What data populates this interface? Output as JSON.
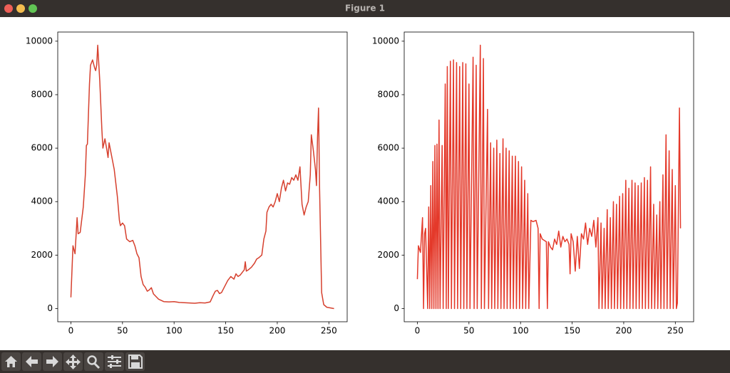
{
  "window": {
    "title": "Figure 1"
  },
  "chart_data": [
    {
      "type": "line",
      "color": "#d6402e",
      "x": [
        0,
        2,
        4,
        6,
        7,
        9,
        12,
        14,
        15,
        16,
        18,
        19,
        21,
        23,
        24,
        25,
        26,
        28,
        30,
        31,
        33,
        35,
        36,
        37,
        40,
        42,
        45,
        47,
        48,
        50,
        52,
        54,
        57,
        60,
        62,
        64,
        66,
        68,
        70,
        72,
        74,
        76,
        78,
        80,
        85,
        90,
        95,
        100,
        105,
        110,
        115,
        120,
        125,
        130,
        135,
        138,
        140,
        142,
        144,
        146,
        148,
        150,
        152,
        155,
        158,
        160,
        162,
        164,
        166,
        168,
        169,
        170,
        172,
        175,
        178,
        180,
        182,
        185,
        187,
        189,
        190,
        192,
        194,
        196,
        198,
        200,
        202,
        204,
        206,
        208,
        210,
        212,
        214,
        216,
        218,
        220,
        222,
        224,
        226,
        228,
        230,
        232,
        233,
        235,
        237,
        238,
        239,
        240,
        241,
        243,
        245,
        248,
        255
      ],
      "values": [
        420,
        2350,
        2050,
        3400,
        2800,
        2850,
        3800,
        5000,
        6100,
        6150,
        8400,
        9100,
        9300,
        9000,
        8900,
        9100,
        9850,
        8500,
        6700,
        6000,
        6350,
        5900,
        5650,
        6200,
        5600,
        5200,
        4200,
        3300,
        3100,
        3200,
        3100,
        2600,
        2500,
        2550,
        2350,
        2050,
        1900,
        1200,
        900,
        800,
        650,
        700,
        780,
        550,
        350,
        260,
        250,
        260,
        230,
        220,
        210,
        200,
        220,
        210,
        250,
        500,
        650,
        680,
        560,
        600,
        750,
        900,
        1050,
        1200,
        1100,
        1300,
        1200,
        1250,
        1350,
        1450,
        1750,
        1400,
        1450,
        1550,
        1700,
        1850,
        1900,
        2000,
        2600,
        2900,
        3600,
        3800,
        3900,
        3800,
        4000,
        4300,
        4000,
        4500,
        4800,
        4400,
        4700,
        4650,
        4900,
        4800,
        5000,
        4800,
        5300,
        3900,
        3500,
        3800,
        4000,
        5000,
        6500,
        5900,
        5200,
        4600,
        6400,
        7500,
        4500,
        600,
        150,
        50,
        0
      ],
      "xlim": [
        -12.75,
        267.75
      ],
      "ylim": [
        -492.5,
        10342.5
      ],
      "xticks": [
        0,
        50,
        100,
        150,
        200,
        250
      ],
      "yticks": [
        0,
        2000,
        4000,
        6000,
        8000,
        10000
      ]
    },
    {
      "type": "line",
      "color": "#e4392a",
      "x": [
        0,
        1,
        3,
        5,
        6,
        7,
        8,
        10,
        11,
        12,
        13,
        14,
        15,
        16,
        17,
        18,
        19,
        20,
        21,
        22,
        24,
        25,
        27,
        28,
        29,
        30,
        32,
        33,
        35,
        36,
        38,
        39,
        41,
        42,
        44,
        45,
        47,
        48,
        50,
        51,
        54,
        55,
        57,
        58,
        61,
        62,
        64,
        65,
        68,
        69,
        71,
        72,
        74,
        75,
        77,
        78,
        80,
        81,
        83,
        84,
        86,
        87,
        89,
        90,
        92,
        93,
        95,
        96,
        98,
        99,
        101,
        102,
        104,
        105,
        107,
        108,
        110,
        112,
        115,
        117,
        118,
        119,
        121,
        123,
        125,
        126,
        127,
        129,
        131,
        133,
        135,
        137,
        139,
        141,
        143,
        145,
        147,
        148,
        149,
        151,
        153,
        155,
        157,
        159,
        161,
        163,
        165,
        167,
        169,
        171,
        173,
        175,
        176,
        178,
        179,
        181,
        182,
        184,
        185,
        187,
        188,
        190,
        191,
        193,
        194,
        196,
        197,
        199,
        200,
        202,
        203,
        205,
        206,
        208,
        209,
        211,
        212,
        214,
        215,
        217,
        218,
        220,
        221,
        223,
        224,
        226,
        227,
        229,
        230,
        232,
        233,
        235,
        236,
        238,
        239,
        241,
        242,
        244,
        245,
        247,
        248,
        250,
        251,
        252,
        254,
        255
      ],
      "values": [
        1100,
        2350,
        2100,
        3400,
        0,
        2800,
        3000,
        0,
        3800,
        0,
        4600,
        0,
        5500,
        0,
        6100,
        0,
        6150,
        0,
        7050,
        0,
        6100,
        0,
        8400,
        0,
        9050,
        0,
        9250,
        0,
        9300,
        0,
        9200,
        0,
        9050,
        0,
        9200,
        0,
        9150,
        0,
        8400,
        0,
        9400,
        0,
        9100,
        0,
        9850,
        0,
        9350,
        0,
        7450,
        0,
        6200,
        0,
        6000,
        0,
        6300,
        0,
        5800,
        0,
        6350,
        0,
        6000,
        0,
        5900,
        0,
        5700,
        0,
        5700,
        0,
        5500,
        0,
        5300,
        0,
        4800,
        0,
        4300,
        0,
        3300,
        3250,
        3300,
        3000,
        0,
        2800,
        2600,
        2550,
        2500,
        0,
        2500,
        2300,
        2200,
        2600,
        2400,
        2900,
        2300,
        2700,
        2500,
        2600,
        2400,
        1300,
        2800,
        2500,
        1400,
        2700,
        1500,
        2800,
        2600,
        3200,
        2400,
        3000,
        2700,
        3300,
        2300,
        3400,
        0,
        3200,
        0,
        3000,
        0,
        3700,
        0,
        3400,
        0,
        4000,
        0,
        3900,
        0,
        4200,
        0,
        4300,
        0,
        4800,
        0,
        4500,
        0,
        4800,
        0,
        4700,
        0,
        4600,
        0,
        4700,
        0,
        4900,
        0,
        4800,
        0,
        5300,
        0,
        3900,
        0,
        3500,
        0,
        4000,
        0,
        5000,
        0,
        6500,
        0,
        5900,
        0,
        5200,
        0,
        4600,
        0,
        200,
        7500,
        3000
      ],
      "xlim": [
        -12.75,
        267.75
      ],
      "ylim": [
        -492.5,
        10342.5
      ],
      "xticks": [
        0,
        50,
        100,
        150,
        200,
        250
      ],
      "yticks": [
        0,
        2000,
        4000,
        6000,
        8000,
        10000
      ]
    }
  ]
}
